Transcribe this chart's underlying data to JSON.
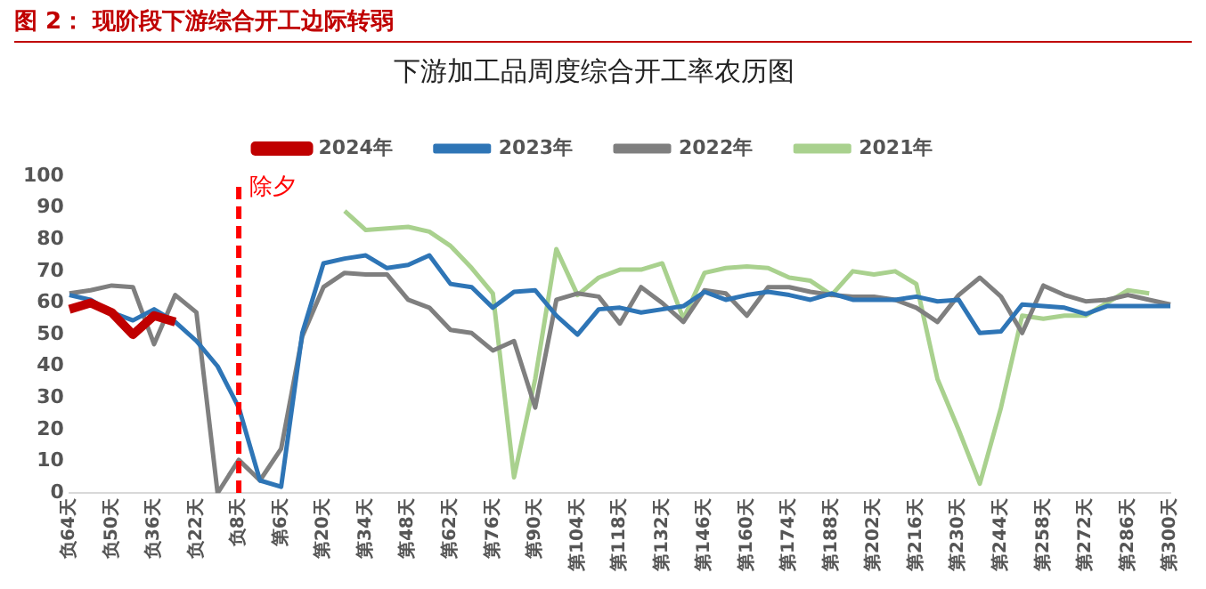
{
  "chart_data": {
    "type": "line",
    "title": "下游加工品周度综合开工率农历图",
    "annotations": [
      "图 2： 现阶段下游综合开工边际转弱"
    ],
    "categories": [
      "负64天",
      null,
      "负50天",
      null,
      "负36天",
      null,
      "负22天",
      null,
      "负8天",
      null,
      "第6天",
      null,
      "第20天",
      null,
      "第34天",
      null,
      "第48天",
      null,
      "第62天",
      null,
      "第76天",
      null,
      "第90天",
      null,
      "第104天",
      null,
      "第118天",
      null,
      "第132天",
      null,
      "第146天",
      null,
      "第160天",
      null,
      "第174天",
      null,
      "第188天",
      null,
      "第202天",
      null,
      "第216天",
      null,
      "第230天",
      null,
      "第244天",
      null,
      "第258天",
      null,
      "第272天",
      null,
      "第286天",
      null,
      "第300天"
    ],
    "ylim": [
      0,
      100
    ],
    "yticks": [
      0,
      10,
      20,
      30,
      40,
      50,
      60,
      70,
      80,
      90,
      100
    ],
    "grid": false,
    "legend": "top",
    "marker": "none",
    "line_style": "solid",
    "ref_lines": [
      {
        "axis": "x",
        "value": "负8天",
        "label": "除夕",
        "color": "#ff0000",
        "line_style": "dashed"
      }
    ],
    "series": [
      {
        "name": "2024年",
        "color": "#c00000",
        "values": [
          58,
          60,
          57,
          50,
          56,
          54,
          null,
          null,
          null,
          null,
          null,
          null,
          null,
          null,
          null,
          null,
          null,
          null,
          null,
          null,
          null,
          null,
          null,
          null,
          null,
          null,
          null,
          null,
          null,
          null,
          null,
          null,
          null,
          null,
          null,
          null,
          null,
          null,
          null,
          null,
          null,
          null,
          null,
          null,
          null,
          null,
          null,
          null,
          null,
          null,
          null,
          null,
          null
        ]
      },
      {
        "name": "2023年",
        "color": "#2e75b6",
        "values": [
          62.5,
          61,
          57,
          54.5,
          58,
          54,
          48,
          40,
          27,
          4,
          2,
          50.5,
          72.5,
          74,
          75,
          71,
          72,
          75,
          66,
          65,
          58.5,
          63.5,
          64,
          56,
          50,
          58,
          58.5,
          57,
          58,
          59,
          63.5,
          61,
          62.5,
          63.5,
          62.5,
          61,
          63,
          61,
          61,
          61,
          62,
          60.5,
          61,
          50.5,
          51,
          59.5,
          59,
          58.5,
          56.5,
          59,
          59,
          59,
          59
        ]
      },
      {
        "name": "2022年",
        "color": "#7f7f7f",
        "values": [
          63,
          64,
          65.5,
          65,
          47,
          62.5,
          57,
          0,
          10.5,
          4,
          14,
          49.5,
          65,
          69.5,
          69,
          69,
          61,
          58.5,
          51.5,
          50.5,
          45,
          48,
          27,
          61,
          63,
          62,
          53.5,
          65,
          60,
          54,
          64,
          63,
          56,
          65,
          65,
          63.5,
          62.5,
          62,
          62,
          61,
          58.5,
          54,
          62.5,
          68,
          62,
          50.5,
          65.5,
          62.5,
          60.5,
          61,
          62.5,
          61,
          59.5
        ]
      },
      {
        "name": "2021年",
        "color": "#a9d18e",
        "values": [
          null,
          null,
          null,
          null,
          null,
          null,
          null,
          null,
          null,
          null,
          null,
          null,
          null,
          89,
          83,
          83.5,
          84,
          82.5,
          78,
          71,
          63,
          5,
          36,
          77,
          62.5,
          68,
          70.5,
          70.5,
          72.5,
          55,
          69.5,
          71,
          71.5,
          71,
          68,
          67,
          62.5,
          70,
          69,
          70,
          66,
          36,
          20,
          3,
          27,
          56,
          55,
          56,
          56,
          60,
          64,
          63,
          null
        ]
      }
    ]
  }
}
